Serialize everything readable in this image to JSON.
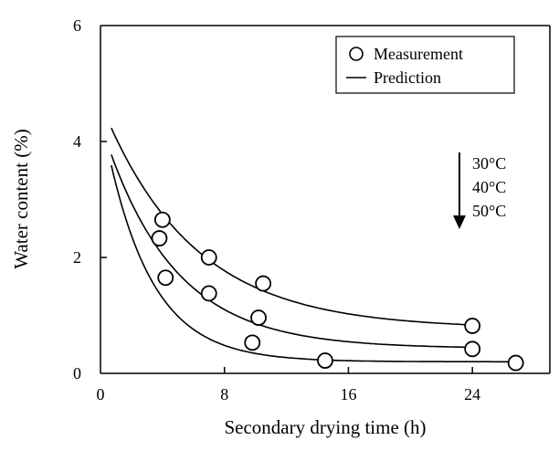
{
  "chart_data": {
    "type": "scatter",
    "xlabel": "Secondary drying time (h)",
    "ylabel": "Water content (%)",
    "xlim": [
      0,
      29
    ],
    "ylim": [
      0,
      6
    ],
    "xticks": [
      0,
      8,
      16,
      24
    ],
    "yticks": [
      0,
      2,
      4,
      6
    ],
    "grid": false,
    "legend": {
      "placement": "top-right",
      "entries": [
        "Measurement",
        "Prediction"
      ]
    },
    "annotation": {
      "labels": [
        "30°C",
        "40°C",
        "50°C"
      ],
      "arrow": "down"
    },
    "series": [
      {
        "label": "30°C",
        "measurement": {
          "x": [
            4,
            7,
            10.5,
            24
          ],
          "y": [
            2.65,
            2.0,
            1.55,
            0.82
          ]
        },
        "prediction": {
          "x0": 0.7,
          "x1": 24,
          "y_inf": 0.77,
          "a": 3.9,
          "k": 0.17
        }
      },
      {
        "label": "40°C",
        "measurement": {
          "x": [
            3.8,
            7,
            10.2,
            24
          ],
          "y": [
            2.33,
            1.38,
            0.96,
            0.42
          ]
        },
        "prediction": {
          "x0": 0.7,
          "x1": 24,
          "y_inf": 0.43,
          "a": 3.9,
          "k": 0.22
        }
      },
      {
        "label": "50°C",
        "measurement": {
          "x": [
            4.2,
            9.8,
            14.5,
            26.8
          ],
          "y": [
            1.65,
            0.53,
            0.22,
            0.18
          ]
        },
        "prediction": {
          "x0": 0.7,
          "x1": 26.8,
          "y_inf": 0.2,
          "a": 4.3,
          "k": 0.34
        }
      }
    ]
  }
}
